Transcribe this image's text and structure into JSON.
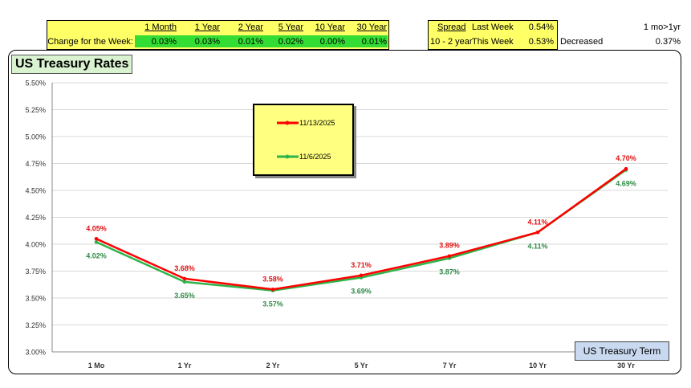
{
  "summary": {
    "row_label": "Change for the Week:",
    "headers": [
      "1 Month",
      "1 Year",
      "2 Year",
      "5 Year",
      "10 Year",
      "30 Year"
    ],
    "values": [
      "0.03%",
      "0.03%",
      "0.01%",
      "0.02%",
      "0.00%",
      "0.01%"
    ]
  },
  "spread": {
    "header": "Spread",
    "label": "10 - 2 year",
    "last_week_label": "Last Week",
    "last_week_value": "0.54%",
    "this_week_label": "This Week",
    "this_week_value": "0.53%",
    "status": "Decreased",
    "side_label": "1 mo>1yr",
    "side_value": "0.37%"
  },
  "chart_data": {
    "type": "line",
    "title": "US Treasury Rates",
    "xlabel": "US Treasury Term",
    "ylabel": "",
    "categories": [
      "1 Mo",
      "1 Yr",
      "2 Yr",
      "5 Yr",
      "7 Yr",
      "10 Yr",
      "30 Yr"
    ],
    "ylim": [
      3.0,
      5.5
    ],
    "yticks": [
      3.0,
      3.25,
      3.5,
      3.75,
      4.0,
      4.25,
      4.5,
      4.75,
      5.0,
      5.25,
      5.5
    ],
    "ytick_labels": [
      "3.00%",
      "3.25%",
      "3.50%",
      "3.75%",
      "4.00%",
      "4.25%",
      "4.50%",
      "4.75%",
      "5.00%",
      "5.25%",
      "5.50%"
    ],
    "grid": true,
    "legend_position": "top-center",
    "series": [
      {
        "name": "11/13/2025",
        "color": "#ff0000",
        "label_color": "#e01010",
        "values": [
          4.05,
          3.68,
          3.58,
          3.71,
          3.89,
          4.11,
          4.7
        ],
        "labels": [
          "4.05%",
          "3.68%",
          "3.58%",
          "3.71%",
          "3.89%",
          "4.11%",
          "4.70%"
        ]
      },
      {
        "name": "11/6/2025",
        "color": "#2db34a",
        "label_color": "#2e8b47",
        "values": [
          4.02,
          3.65,
          3.57,
          3.69,
          3.87,
          4.11,
          4.69
        ],
        "labels": [
          "4.02%",
          "3.65%",
          "3.57%",
          "3.69%",
          "3.87%",
          "4.11%",
          "4.69%"
        ]
      }
    ]
  }
}
